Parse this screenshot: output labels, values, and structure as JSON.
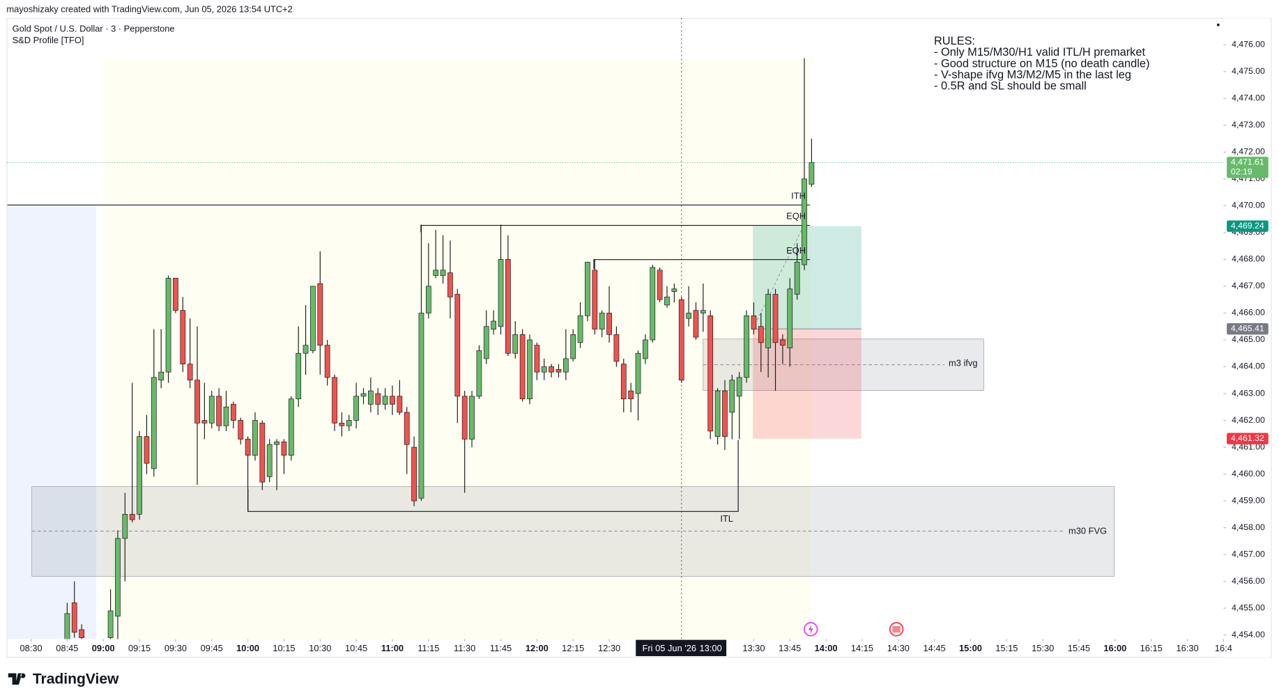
{
  "header": {
    "credit": "mayoshizaky created with TradingView.com, Jun 05, 2026 13:54 UTC+2",
    "symbol": "Gold Spot / U.S. Dollar · 3 · Pepperstone",
    "indicator": "S&D Profile [TFO]",
    "logo": "TradingView"
  },
  "notes": [
    "RULES:",
    "- Only M15/M30/H1 valid ITL/H premarket",
    "- Good structure on M15 (no death candle)",
    "- V-shape ifvg M3/M2/M5 in the last leg",
    "- 0.5R and SL should be small"
  ],
  "labels": {
    "ith": "ITH",
    "eqh1": "EQH",
    "eqh2": "EQH",
    "itl": "ITL",
    "m3": "m3 ifvg",
    "m30": "m30 FVG"
  },
  "chart_data": {
    "type": "candlestick",
    "up_color": "#66bb6a",
    "down_color": "#ef5350",
    "x": [
      "08:45",
      "08:48",
      "08:51",
      "09:03",
      "09:06",
      "09:09",
      "09:12",
      "09:15",
      "09:18",
      "09:21",
      "09:24",
      "09:27",
      "09:30",
      "09:33",
      "09:36",
      "09:39",
      "09:42",
      "09:45",
      "09:48",
      "09:51",
      "09:54",
      "09:57",
      "10:00",
      "10:03",
      "10:06",
      "10:09",
      "10:12",
      "10:15",
      "10:18",
      "10:21",
      "10:24",
      "10:27",
      "10:30",
      "10:33",
      "10:36",
      "10:39",
      "10:42",
      "10:45",
      "10:48",
      "10:51",
      "10:54",
      "10:57",
      "11:00",
      "11:03",
      "11:06",
      "11:09",
      "11:12",
      "11:15",
      "11:18",
      "11:21",
      "11:24",
      "11:27",
      "11:30",
      "11:33",
      "11:36",
      "11:39",
      "11:42",
      "11:45",
      "11:48",
      "11:51",
      "11:54",
      "11:57",
      "12:00",
      "12:03",
      "12:06",
      "12:09",
      "12:12",
      "12:15",
      "12:18",
      "12:21",
      "12:24",
      "12:27",
      "12:30",
      "12:33",
      "12:36",
      "12:39",
      "12:42",
      "12:45",
      "12:48",
      "12:51",
      "12:54",
      "12:57",
      "13:00",
      "13:03",
      "13:06",
      "13:09",
      "13:12",
      "13:15",
      "13:18",
      "13:21",
      "13:24",
      "13:27",
      "13:30",
      "13:33",
      "13:36",
      "13:39",
      "13:42",
      "13:45",
      "13:48",
      "13:51",
      "13:54"
    ],
    "open": [
      4453.8,
      4455.2,
      4454.2,
      4453.9,
      4454.7,
      4457.6,
      4458.5,
      4458.5,
      4461.4,
      4460.2,
      4463.5,
      4463.8,
      4467.3,
      4466.1,
      4464.1,
      4463.5,
      4462.0,
      4461.9,
      4462.9,
      4461.8,
      4462.6,
      4462.0,
      4461.3,
      4460.7,
      4461.9,
      4459.9,
      4461.1,
      4461.2,
      4460.7,
      4462.8,
      4464.5,
      4464.6,
      4467.1,
      4464.8,
      4463.6,
      4461.9,
      4461.8,
      4462.0,
      4462.9,
      4462.6,
      4463.0,
      4462.6,
      4462.9,
      4462.9,
      4462.3,
      4461.0,
      4459.1,
      4466.0,
      4467.4,
      4467.4,
      4467.5,
      4466.7,
      4462.9,
      4461.3,
      4462.9,
      4464.3,
      4465.4,
      4465.5,
      4468.0,
      4464.5,
      4465.2,
      4462.8,
      4464.8,
      4463.8,
      4464.0,
      4463.9,
      4463.8,
      4464.3,
      4464.9,
      4465.9,
      4467.6,
      4465.4,
      4466.0,
      4465.2,
      4464.1,
      4463.1,
      4463.0,
      4464.3,
      4465.0,
      4467.6,
      4466.3,
      4466.8,
      4466.5,
      4465.8,
      4466.1,
      4466.0,
      4465.9,
      4461.4,
      4463.1,
      4462.3,
      4462.9,
      4463.6,
      4465.9,
      4465.5,
      4464.7,
      4466.7,
      4465.0,
      4464.7,
      4466.7,
      4467.8,
      4470.8
    ],
    "high": [
      4455.2,
      4456.0,
      4454.4,
      4455.7,
      4457.9,
      4459.3,
      4463.4,
      4461.6,
      4462.2,
      4465.4,
      4465.4,
      4467.4,
      4467.3,
      4466.6,
      4465.8,
      4465.5,
      4463.4,
      4463.1,
      4463.2,
      4463.1,
      4462.7,
      4462.1,
      4461.4,
      4462.3,
      4462.0,
      4461.3,
      4461.3,
      4461.3,
      4462.9,
      4465.5,
      4466.3,
      4467.0,
      4468.3,
      4465.0,
      4463.7,
      4462.3,
      4462.2,
      4463.4,
      4463.2,
      4463.6,
      4463.2,
      4463.2,
      4463.3,
      4463.5,
      4462.5,
      4461.4,
      4469.3,
      4468.6,
      4469.1,
      4468.9,
      4468.7,
      4466.9,
      4463.1,
      4463.1,
      4464.8,
      4466.1,
      4466.1,
      4469.3,
      4468.9,
      4465.7,
      4465.4,
      4465.2,
      4464.9,
      4464.3,
      4464.1,
      4464.1,
      4465.4,
      4465.4,
      4466.4,
      4467.9,
      4468.0,
      4466.1,
      4467.0,
      4465.5,
      4464.3,
      4463.4,
      4464.6,
      4465.2,
      4467.8,
      4467.7,
      4467.0,
      4467.1,
      4466.6,
      4467.0,
      4466.4,
      4467.1,
      4466.1,
      4463.2,
      4463.5,
      4463.7,
      4463.8,
      4466.1,
      4466.4,
      4466.0,
      4466.9,
      4466.9,
      4465.2,
      4467.3,
      4468.6,
      4475.5,
      4472.5
    ],
    "low": [
      4453.8,
      4453.9,
      4453.8,
      4453.8,
      4453.8,
      4456.0,
      4458.2,
      4458.3,
      4460.0,
      4459.9,
      4463.2,
      4463.4,
      4466.0,
      4463.8,
      4463.2,
      4459.6,
      4461.3,
      4461.7,
      4461.6,
      4461.6,
      4461.7,
      4461.1,
      4458.6,
      4460.5,
      4459.4,
      4459.7,
      4459.4,
      4460.0,
      4460.5,
      4462.5,
      4463.7,
      4464.5,
      4463.7,
      4463.3,
      4461.6,
      4461.4,
      4461.6,
      4461.7,
      4462.6,
      4462.3,
      4462.2,
      4462.4,
      4462.2,
      4462.2,
      4460.0,
      4458.8,
      4459.0,
      4465.8,
      4467.3,
      4467.1,
      4465.8,
      4461.9,
      4459.3,
      4461.0,
      4462.8,
      4464.1,
      4465.2,
      4465.2,
      4464.4,
      4464.3,
      4462.7,
      4462.6,
      4463.5,
      4463.5,
      4463.6,
      4463.6,
      4463.5,
      4464.2,
      4464.7,
      4465.7,
      4465.2,
      4465.1,
      4464.9,
      4464.0,
      4462.3,
      4462.3,
      4462.0,
      4464.1,
      4464.9,
      4466.4,
      4466.2,
      4466.4,
      4463.4,
      4465.5,
      4465.0,
      4465.3,
      4461.3,
      4461.1,
      4460.9,
      4461.3,
      4461.3,
      4463.4,
      4465.2,
      4463.8,
      4463.6,
      4463.1,
      4464.1,
      4464.0,
      4466.5,
      4467.6,
      4470.7
    ],
    "close": [
      4454.8,
      4454.1,
      4453.9,
      4454.9,
      4457.6,
      4458.5,
      4458.3,
      4461.4,
      4460.4,
      4463.6,
      4463.8,
      4467.3,
      4466.1,
      4464.1,
      4463.5,
      4461.9,
      4461.9,
      4462.9,
      4461.8,
      4462.5,
      4462.0,
      4461.3,
      4460.7,
      4462.0,
      4459.7,
      4461.1,
      4461.2,
      4460.7,
      4462.8,
      4464.5,
      4464.8,
      4467.0,
      4464.8,
      4463.6,
      4461.9,
      4461.8,
      4462.0,
      4462.9,
      4463.0,
      4463.1,
      4462.6,
      4462.9,
      4462.6,
      4462.3,
      4461.1,
      4459.0,
      4466.0,
      4467.0,
      4467.6,
      4467.6,
      4466.6,
      4462.9,
      4461.3,
      4462.9,
      4464.6,
      4465.5,
      4465.7,
      4468.0,
      4464.5,
      4465.2,
      4462.8,
      4465.0,
      4463.8,
      4464.0,
      4463.8,
      4463.8,
      4464.3,
      4465.2,
      4465.9,
      4467.9,
      4465.4,
      4466.0,
      4465.2,
      4464.2,
      4462.8,
      4462.8,
      4464.5,
      4465.0,
      4467.7,
      4466.5,
      4466.6,
      4466.9,
      4463.5,
      4466.0,
      4465.1,
      4466.1,
      4461.6,
      4463.1,
      4461.4,
      4463.5,
      4463.6,
      4465.9,
      4465.4,
      4464.9,
      4466.7,
      4464.9,
      4464.8,
      4466.9,
      4467.9,
      4471.0,
      4471.61
    ],
    "ylim": [
      4453.85,
      4477.0
    ],
    "yticks": [
      {
        "value": 4454,
        "label": "4,454.00"
      },
      {
        "value": 4455,
        "label": "4,455.00"
      },
      {
        "value": 4456,
        "label": "4,456.00"
      },
      {
        "value": 4457,
        "label": "4,457.00"
      },
      {
        "value": 4458,
        "label": "4,458.00"
      },
      {
        "value": 4459,
        "label": "4,459.00"
      },
      {
        "value": 4460,
        "label": "4,460.00"
      },
      {
        "value": 4461,
        "label": "4,461.00"
      },
      {
        "value": 4462,
        "label": "4,462.00"
      },
      {
        "value": 4463,
        "label": "4,463.00"
      },
      {
        "value": 4464,
        "label": "4,464.00"
      },
      {
        "value": 4465,
        "label": "4,465.00"
      },
      {
        "value": 4466,
        "label": "4,466.00"
      },
      {
        "value": 4467,
        "label": "4,467.00"
      },
      {
        "value": 4468,
        "label": "4,468.00"
      },
      {
        "value": 4469,
        "label": "4,469.00"
      },
      {
        "value": 4470,
        "label": "4,470.00"
      },
      {
        "value": 4471,
        "label": "4,471.00"
      },
      {
        "value": 4472,
        "label": "4,472.00"
      },
      {
        "value": 4473,
        "label": "4,473.00"
      },
      {
        "value": 4474,
        "label": "4,474.00"
      },
      {
        "value": 4475,
        "label": "4,475.00"
      },
      {
        "value": 4476,
        "label": "4,476.00"
      }
    ],
    "xlim": [
      "08:20",
      "16:45"
    ],
    "xticks": [
      "08:30",
      "08:45",
      "09:00",
      "09:15",
      "09:30",
      "09:45",
      "10:00",
      "10:15",
      "10:30",
      "10:45",
      "11:00",
      "11:15",
      "11:30",
      "11:45",
      "12:00",
      "12:15",
      "12:30",
      "13:30",
      "13:45",
      "14:00",
      "14:15",
      "14:30",
      "14:45",
      "15:00",
      "15:15",
      "15:30",
      "15:45",
      "16:00",
      "16:15",
      "16:30",
      {
        "value": "16:45",
        "label": "16:4"
      }
    ],
    "last_price": {
      "value": 4471.61,
      "label": "4,471.61",
      "countdown": "02:19"
    },
    "position": {
      "target": {
        "value": 4469.24,
        "label": "4,469.24"
      },
      "entry": {
        "value": 4465.41,
        "label": "4,465.41"
      },
      "stop": {
        "value": 4461.32,
        "label": "4,461.32"
      }
    },
    "crosshair": {
      "date": "Fri 05 Jun '26",
      "time": "13:00"
    }
  }
}
